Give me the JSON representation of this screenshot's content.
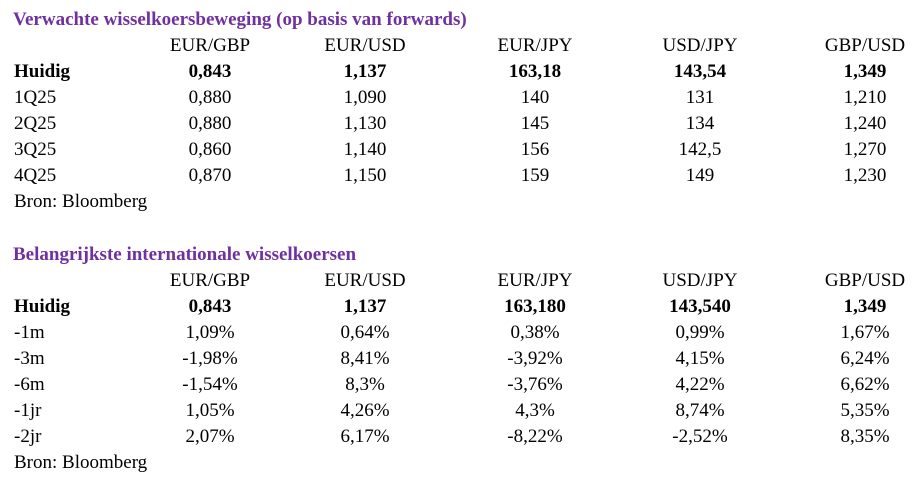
{
  "sections": [
    {
      "title": "Verwachte wisselkoersbeweging (op basis van forwards)",
      "columns": [
        "EUR/GBP",
        "EUR/USD",
        "EUR/JPY",
        "USD/JPY",
        "GBP/USD"
      ],
      "rows": [
        {
          "label": "Huidig",
          "values": [
            "0,843",
            "1,137",
            "163,18",
            "143,54",
            "1,349"
          ]
        },
        {
          "label": "1Q25",
          "values": [
            "0,880",
            "1,090",
            "140",
            "131",
            "1,210"
          ]
        },
        {
          "label": "2Q25",
          "values": [
            "0,880",
            "1,130",
            "145",
            "134",
            "1,240"
          ]
        },
        {
          "label": "3Q25",
          "values": [
            "0,860",
            "1,140",
            "156",
            "142,5",
            "1,270"
          ]
        },
        {
          "label": "4Q25",
          "values": [
            "0,870",
            "1,150",
            "159",
            "149",
            "1,230"
          ]
        }
      ],
      "source": "Bron: Bloomberg"
    },
    {
      "title": "Belangrijkste internationale wisselkoersen",
      "columns": [
        "EUR/GBP",
        "EUR/USD",
        "EUR/JPY",
        "USD/JPY",
        "GBP/USD"
      ],
      "rows": [
        {
          "label": "Huidig",
          "values": [
            "0,843",
            "1,137",
            "163,180",
            "143,540",
            "1,349"
          ]
        },
        {
          "label": "-1m",
          "values": [
            "1,09%",
            "0,64%",
            "0,38%",
            "0,99%",
            "1,67%"
          ]
        },
        {
          "label": "-3m",
          "values": [
            "-1,98%",
            "8,41%",
            "-3,92%",
            "4,15%",
            "6,24%"
          ]
        },
        {
          "label": "-6m",
          "values": [
            "-1,54%",
            "8,3%",
            "-3,76%",
            "4,22%",
            "6,62%"
          ]
        },
        {
          "label": "-1jr",
          "values": [
            "1,05%",
            "4,26%",
            "4,3%",
            "8,74%",
            "5,35%"
          ]
        },
        {
          "label": "-2jr",
          "values": [
            "2,07%",
            "6,17%",
            "-8,22%",
            "-2,52%",
            "8,35%"
          ]
        }
      ],
      "source": "Bron: Bloomberg"
    }
  ]
}
